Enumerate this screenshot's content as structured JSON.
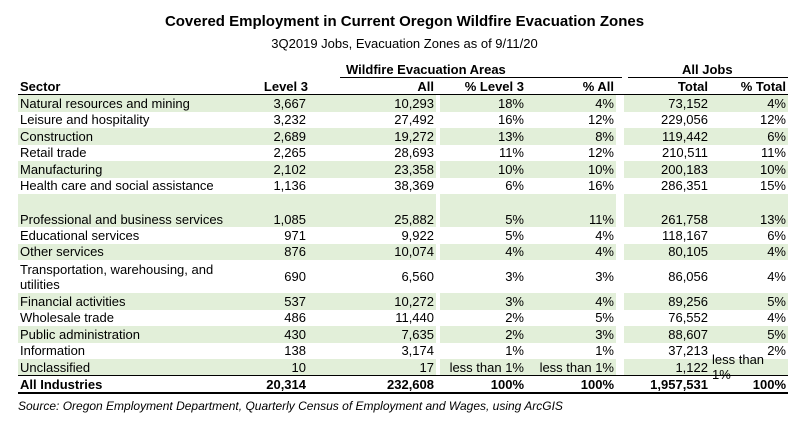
{
  "title": "Covered Employment in Current Oregon Wildfire Evacuation Zones",
  "subtitle": "3Q2019 Jobs, Evacuation Zones as of 9/11/20",
  "group_headers": {
    "evacuation": "Wildfire Evacuation Areas",
    "all_jobs": "All Jobs"
  },
  "columns": {
    "sector": "Sector",
    "level3": "Level 3",
    "all": "All",
    "pct_level3": "% Level 3",
    "pct_all": "% All",
    "total": "Total",
    "pct_total": "% Total"
  },
  "rows": [
    {
      "sector": "Natural resources and mining",
      "level3": "3,667",
      "all": "10,293",
      "pct_level3": "18%",
      "pct_all": "4%",
      "total": "73,152",
      "pct_total": "4%",
      "shaded": true
    },
    {
      "sector": "Leisure and hospitality",
      "level3": "3,232",
      "all": "27,492",
      "pct_level3": "16%",
      "pct_all": "12%",
      "total": "229,056",
      "pct_total": "12%",
      "shaded": false
    },
    {
      "sector": "Construction",
      "level3": "2,689",
      "all": "19,272",
      "pct_level3": "13%",
      "pct_all": "8%",
      "total": "119,442",
      "pct_total": "6%",
      "shaded": true
    },
    {
      "sector": "Retail trade",
      "level3": "2,265",
      "all": "28,693",
      "pct_level3": "11%",
      "pct_all": "12%",
      "total": "210,511",
      "pct_total": "11%",
      "shaded": false
    },
    {
      "sector": "Manufacturing",
      "level3": "2,102",
      "all": "23,358",
      "pct_level3": "10%",
      "pct_all": "10%",
      "total": "200,183",
      "pct_total": "10%",
      "shaded": true
    },
    {
      "sector": "Health care and social assistance",
      "level3": "1,136",
      "all": "38,369",
      "pct_level3": "6%",
      "pct_all": "16%",
      "total": "286,351",
      "pct_total": "15%",
      "shaded": false
    },
    {
      "sector": "Professional and business services",
      "level3": "1,085",
      "all": "25,882",
      "pct_level3": "5%",
      "pct_all": "11%",
      "total": "261,758",
      "pct_total": "13%",
      "shaded": true
    },
    {
      "sector": "Educational services",
      "level3": "971",
      "all": "9,922",
      "pct_level3": "5%",
      "pct_all": "4%",
      "total": "118,167",
      "pct_total": "6%",
      "shaded": false
    },
    {
      "sector": "Other services",
      "level3": "876",
      "all": "10,074",
      "pct_level3": "4%",
      "pct_all": "4%",
      "total": "80,105",
      "pct_total": "4%",
      "shaded": true
    },
    {
      "sector": "Transportation, warehousing, and utilities",
      "level3": "690",
      "all": "6,560",
      "pct_level3": "3%",
      "pct_all": "3%",
      "total": "86,056",
      "pct_total": "4%",
      "shaded": false
    },
    {
      "sector": "Financial activities",
      "level3": "537",
      "all": "10,272",
      "pct_level3": "3%",
      "pct_all": "4%",
      "total": "89,256",
      "pct_total": "5%",
      "shaded": true
    },
    {
      "sector": "Wholesale trade",
      "level3": "486",
      "all": "11,440",
      "pct_level3": "2%",
      "pct_all": "5%",
      "total": "76,552",
      "pct_total": "4%",
      "shaded": false
    },
    {
      "sector": "Public administration",
      "level3": "430",
      "all": "7,635",
      "pct_level3": "2%",
      "pct_all": "3%",
      "total": "88,607",
      "pct_total": "5%",
      "shaded": true
    },
    {
      "sector": "Information",
      "level3": "138",
      "all": "3,174",
      "pct_level3": "1%",
      "pct_all": "1%",
      "total": "37,213",
      "pct_total": "2%",
      "shaded": false
    },
    {
      "sector": "Unclassified",
      "level3": "10",
      "all": "17",
      "pct_level3": "less than 1%",
      "pct_all": "less than 1%",
      "total": "1,122",
      "pct_total": "less than 1%",
      "shaded": true
    }
  ],
  "total_row": {
    "sector": "All Industries",
    "level3": "20,314",
    "all": "232,608",
    "pct_level3": "100%",
    "pct_all": "100%",
    "total": "1,957,531",
    "pct_total": "100%"
  },
  "source": "Source: Oregon Employment Department, Quarterly Census of Employment and Wages, using ArcGIS",
  "colors": {
    "row_shading": "#e2efd9",
    "text": "#000000",
    "rules": "#000000"
  }
}
